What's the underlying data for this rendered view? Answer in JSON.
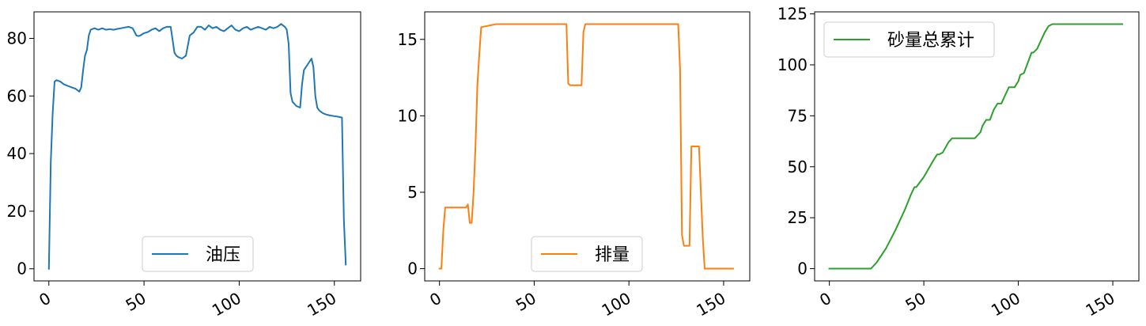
{
  "chart_data": [
    {
      "type": "line",
      "title": "",
      "xlabel": "",
      "ylabel": "",
      "xlim": [
        -7.8,
        163.8
      ],
      "ylim": [
        -4.2,
        89.2
      ],
      "xticks": [
        0,
        50,
        100,
        150
      ],
      "xtick_labels": [
        "0",
        "50",
        "100",
        "150"
      ],
      "yticks": [
        0,
        20,
        40,
        60,
        80
      ],
      "ytick_labels": [
        "0",
        "20",
        "40",
        "60",
        "80"
      ],
      "legend_position": "bottom-center",
      "series": [
        {
          "name": "油压",
          "color": "#1f77b4",
          "x": [
            0,
            1,
            2,
            3,
            4,
            6,
            8,
            10,
            12,
            14,
            15,
            16,
            17,
            18,
            19,
            20,
            21,
            22,
            24,
            26,
            28,
            30,
            32,
            34,
            36,
            38,
            40,
            42,
            44,
            46,
            47,
            48,
            50,
            52,
            54,
            56,
            58,
            60,
            62,
            64,
            66,
            67,
            68,
            70,
            72,
            74,
            76,
            78,
            80,
            82,
            84,
            86,
            88,
            90,
            92,
            94,
            96,
            98,
            100,
            102,
            104,
            106,
            108,
            110,
            112,
            114,
            116,
            118,
            120,
            122,
            124,
            125,
            126,
            127,
            128,
            130,
            132,
            133,
            134,
            136,
            138,
            139,
            140,
            141,
            142,
            144,
            146,
            148,
            150,
            152,
            154,
            155,
            156
          ],
          "y": [
            0,
            37,
            54,
            65,
            65.5,
            65,
            64,
            63.5,
            63,
            62.5,
            62,
            61.5,
            63,
            69,
            74,
            76,
            81,
            83,
            83.5,
            83,
            83.5,
            83,
            83.2,
            83,
            83.3,
            83.5,
            83.8,
            84,
            83.5,
            81,
            80.8,
            81,
            81.8,
            82.2,
            83,
            83.5,
            82.5,
            83.5,
            84,
            84,
            75,
            74,
            73.5,
            73,
            74,
            81,
            82,
            84,
            84,
            83,
            84.5,
            83.5,
            84,
            83,
            82.5,
            83.5,
            84.5,
            83,
            82.5,
            83.5,
            84,
            83,
            83.5,
            84,
            83.5,
            83,
            84,
            83.5,
            84,
            85,
            84,
            83,
            78,
            61,
            58,
            56.5,
            56,
            64,
            69,
            71,
            73,
            70,
            60,
            56,
            55,
            54,
            53.5,
            53.2,
            53,
            52.8,
            52.5,
            17,
            1.5
          ]
        }
      ]
    },
    {
      "type": "line",
      "title": "",
      "xlabel": "",
      "ylabel": "",
      "xlim": [
        -7.8,
        163.8
      ],
      "ylim": [
        -0.8,
        16.8
      ],
      "xticks": [
        0,
        50,
        100,
        150
      ],
      "xtick_labels": [
        "0",
        "50",
        "100",
        "150"
      ],
      "yticks": [
        0,
        5,
        10,
        15
      ],
      "ytick_labels": [
        "0",
        "5",
        "10",
        "15"
      ],
      "legend_position": "bottom-center",
      "series": [
        {
          "name": "排量",
          "color": "#ff7f0e",
          "x": [
            0,
            1,
            2,
            3,
            5,
            10,
            14,
            15,
            16,
            17,
            18,
            19,
            20,
            21,
            22,
            30,
            40,
            50,
            60,
            67,
            68,
            69,
            72,
            75,
            76,
            77,
            80,
            90,
            100,
            110,
            120,
            126,
            127,
            128,
            129,
            130,
            132,
            133,
            134,
            136,
            137,
            138,
            139,
            140,
            145,
            150,
            155
          ],
          "y": [
            0,
            0,
            2.5,
            4,
            4,
            4,
            4,
            4.2,
            3,
            3,
            5,
            8,
            12,
            14,
            15.8,
            16,
            16,
            16,
            16,
            16,
            12.1,
            12,
            12,
            12,
            15.5,
            16,
            16,
            16,
            16,
            16,
            16,
            16,
            13,
            2.2,
            1.5,
            1.5,
            1.5,
            8,
            8,
            8,
            8,
            5,
            2,
            0,
            0,
            0,
            0
          ]
        }
      ]
    },
    {
      "type": "line",
      "title": "",
      "xlabel": "",
      "ylabel": "",
      "xlim": [
        -7.8,
        163.8
      ],
      "ylim": [
        -6,
        126
      ],
      "xticks": [
        0,
        50,
        100,
        150
      ],
      "xtick_labels": [
        "0",
        "50",
        "100",
        "150"
      ],
      "yticks": [
        0,
        25,
        50,
        75,
        100,
        125
      ],
      "ytick_labels": [
        "0",
        "25",
        "50",
        "75",
        "100",
        "125"
      ],
      "legend_position": "top-left",
      "series": [
        {
          "name": "砂量总累计",
          "color": "#2ca02c",
          "x": [
            0,
            10,
            20,
            22,
            25,
            30,
            35,
            40,
            43,
            45,
            46,
            50,
            55,
            57,
            58,
            60,
            63,
            65,
            70,
            75,
            77,
            80,
            81,
            83,
            85,
            87,
            89,
            91,
            93,
            95,
            97,
            98,
            100,
            101,
            103,
            105,
            107,
            108,
            110,
            112,
            114,
            116,
            118,
            120,
            122,
            130,
            140,
            155
          ],
          "y": [
            0,
            0,
            0,
            0,
            3,
            10,
            19,
            29,
            36,
            40,
            40,
            45,
            53,
            56,
            56,
            57,
            62,
            64,
            64,
            64,
            64,
            67,
            70,
            73,
            73,
            78,
            81,
            81,
            85,
            89,
            89,
            89,
            92,
            95,
            96,
            101,
            106,
            106,
            108,
            112,
            116,
            119,
            120,
            120,
            120,
            120,
            120,
            120
          ]
        }
      ]
    }
  ]
}
